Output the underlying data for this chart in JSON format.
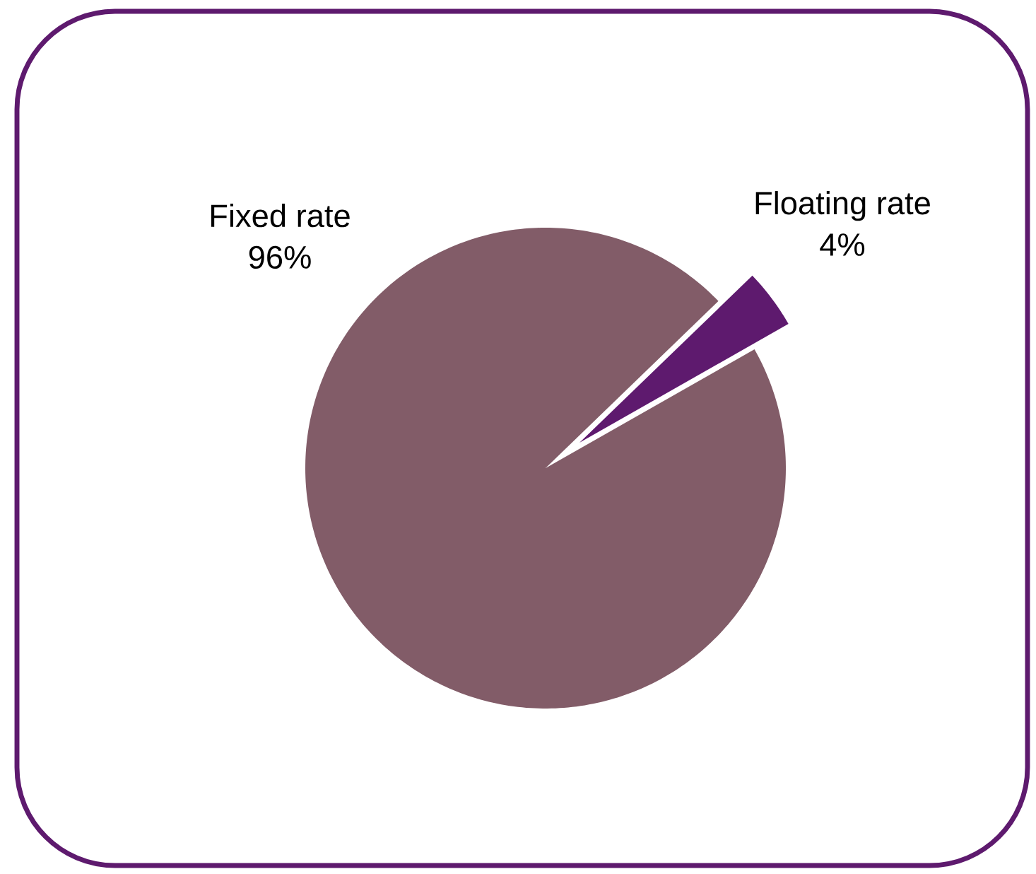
{
  "chart_data": {
    "type": "pie",
    "categories": [
      "Fixed rate",
      "Floating rate"
    ],
    "values": [
      96,
      4
    ],
    "colors": [
      "#825c68",
      "#5e1a6e"
    ],
    "value_labels": [
      "96%",
      "4%"
    ]
  }
}
